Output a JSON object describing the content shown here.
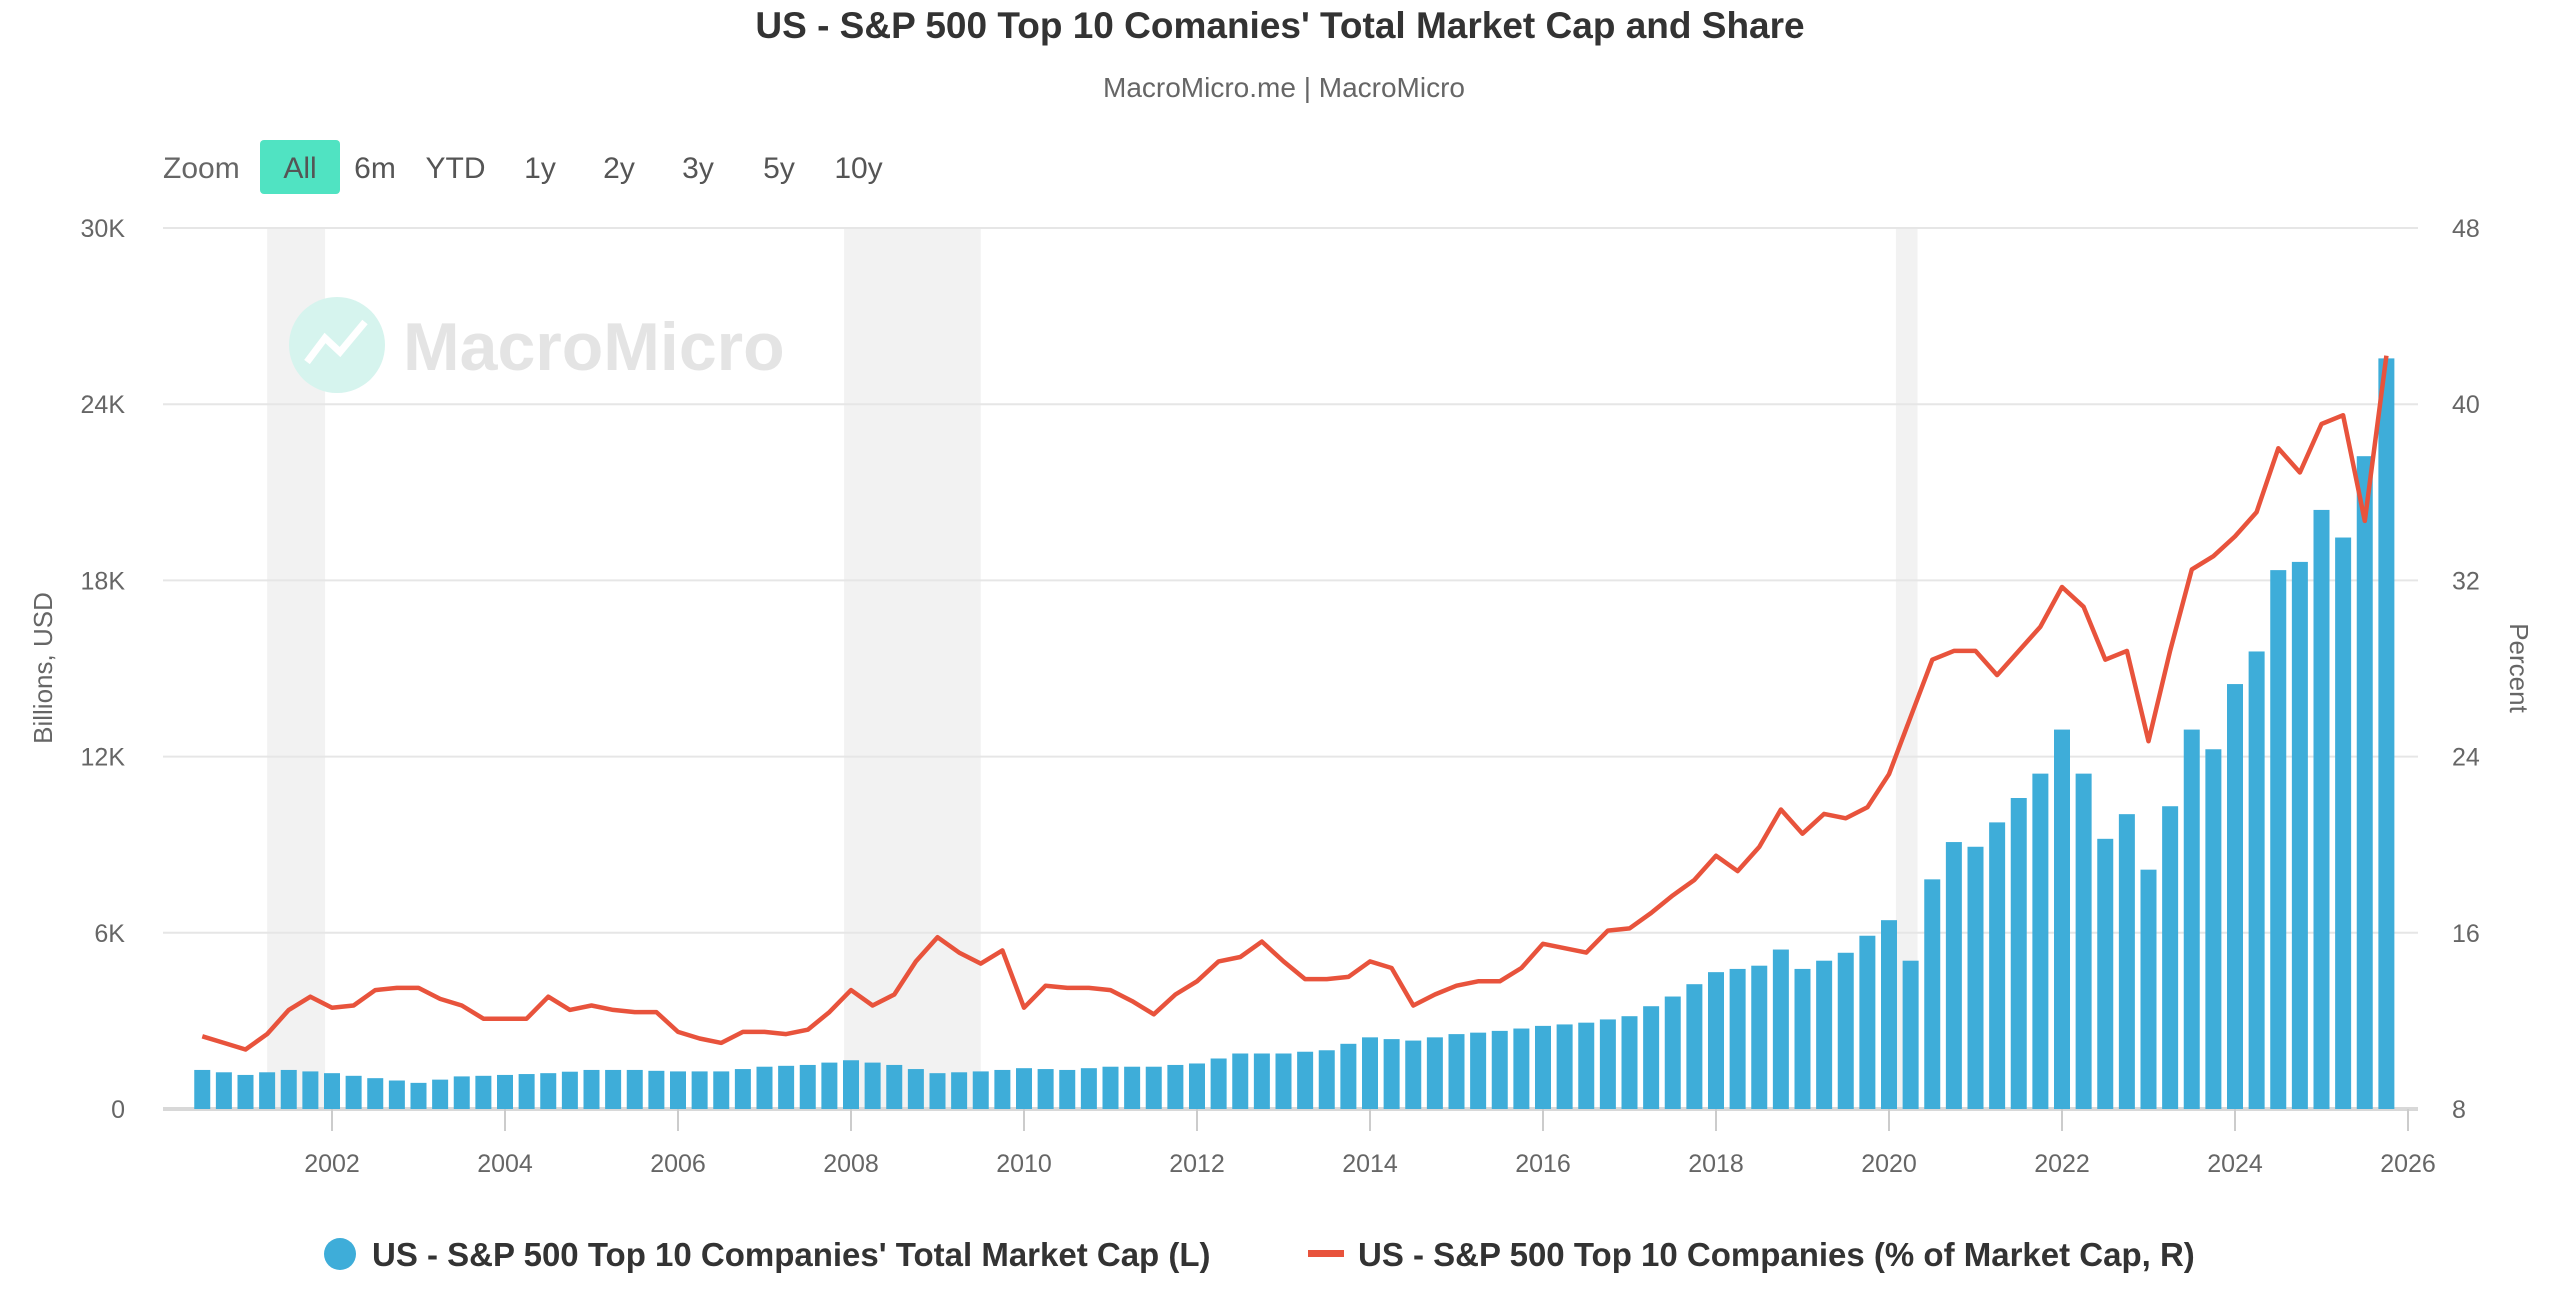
{
  "chart_data": {
    "type": "bar+line",
    "title": "US - S&P 500 Top 10 Comanies' Total Market Cap and Share",
    "subtitle": "MacroMicro.me | MacroMicro",
    "watermark": "MacroMicro",
    "zoom": {
      "label": "Zoom",
      "buttons": [
        "All",
        "6m",
        "YTD",
        "1y",
        "2y",
        "3y",
        "5y",
        "10y"
      ],
      "selected": "All"
    },
    "xlim": [
      2000.2,
      2026.0
    ],
    "x_ticks": [
      2002,
      2004,
      2006,
      2008,
      2010,
      2012,
      2014,
      2016,
      2018,
      2020,
      2022,
      2024,
      2026
    ],
    "y_left": {
      "label": "Billions, USD",
      "lim": [
        0,
        30000
      ],
      "ticks": [
        0,
        6000,
        12000,
        18000,
        24000,
        30000
      ],
      "tick_labels": [
        "0",
        "6K",
        "12K",
        "18K",
        "24K",
        "30K"
      ]
    },
    "y_right": {
      "label": "Percent",
      "lim": [
        8,
        48
      ],
      "ticks": [
        8,
        16,
        24,
        32,
        40,
        48
      ],
      "tick_labels": [
        "8",
        "16",
        "24",
        "32",
        "40",
        "48"
      ]
    },
    "grid": true,
    "legend_position": "bottom",
    "recessions": [
      [
        2001.25,
        2001.92
      ],
      [
        2007.92,
        2009.5
      ],
      [
        2020.08,
        2020.33
      ]
    ],
    "x_start": 2000.5,
    "x_step": 0.25,
    "series": [
      {
        "name": "US - S&P 500 Top 10 Companies' Total Market Cap (L)",
        "type": "bar",
        "axis": "left",
        "color": "#3eadd9",
        "values": [
          1330,
          1250,
          1160,
          1250,
          1330,
          1280,
          1220,
          1130,
          1050,
          970,
          890,
          1000,
          1110,
          1130,
          1160,
          1190,
          1220,
          1270,
          1330,
          1330,
          1330,
          1300,
          1280,
          1280,
          1280,
          1360,
          1440,
          1470,
          1500,
          1580,
          1660,
          1580,
          1500,
          1360,
          1220,
          1250,
          1280,
          1330,
          1390,
          1360,
          1330,
          1390,
          1440,
          1440,
          1440,
          1500,
          1550,
          1720,
          1890,
          1890,
          1890,
          1950,
          2000,
          2220,
          2440,
          2380,
          2330,
          2440,
          2550,
          2600,
          2660,
          2740,
          2830,
          2880,
          2940,
          3050,
          3160,
          3500,
          3830,
          4250,
          4660,
          4770,
          4880,
          5430,
          4770,
          5050,
          5320,
          5900,
          6430,
          5050,
          7820,
          9090,
          8930,
          9760,
          10590,
          11420,
          12920,
          11420,
          9200,
          10040,
          8150,
          10310,
          12920,
          12250,
          14470,
          15580,
          18350,
          18630,
          20400,
          19460,
          22230,
          25560
        ]
      },
      {
        "name": "US - S&P 500 Top 10 Companies (% of Market Cap, R)",
        "type": "line",
        "axis": "right",
        "color": "#e8533c",
        "values": [
          11.3,
          11.0,
          10.7,
          11.4,
          12.5,
          13.1,
          12.6,
          12.7,
          13.4,
          13.5,
          13.5,
          13.0,
          12.7,
          12.1,
          12.1,
          12.1,
          13.1,
          12.5,
          12.7,
          12.5,
          12.4,
          12.4,
          11.5,
          11.2,
          11.0,
          11.5,
          11.5,
          11.4,
          11.6,
          12.4,
          13.4,
          12.7,
          13.2,
          14.7,
          15.8,
          15.1,
          14.6,
          15.2,
          12.6,
          13.6,
          13.5,
          13.5,
          13.4,
          12.9,
          12.3,
          13.2,
          13.8,
          14.7,
          14.9,
          15.6,
          14.7,
          13.9,
          13.9,
          14.0,
          14.7,
          14.4,
          12.7,
          13.2,
          13.6,
          13.8,
          13.8,
          14.4,
          15.5,
          15.3,
          15.1,
          16.1,
          16.2,
          16.9,
          17.7,
          18.4,
          19.5,
          18.8,
          19.9,
          21.6,
          20.5,
          21.4,
          21.2,
          21.7,
          23.2,
          25.8,
          28.4,
          28.8,
          28.8,
          27.7,
          28.8,
          29.9,
          31.7,
          30.8,
          28.4,
          28.8,
          24.7,
          28.8,
          32.5,
          33.1,
          34.0,
          35.1,
          38.0,
          36.9,
          39.1,
          39.5,
          34.7,
          42.2
        ]
      }
    ]
  }
}
